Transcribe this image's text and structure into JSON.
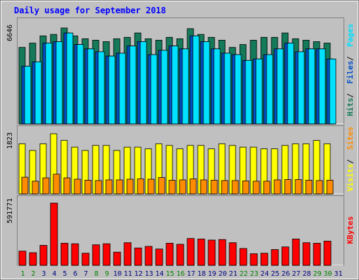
{
  "chart_data": {
    "type": "bar",
    "title": "Daily usage for September 2018",
    "categories": [
      "1",
      "2",
      "3",
      "4",
      "5",
      "6",
      "7",
      "8",
      "9",
      "10",
      "11",
      "12",
      "13",
      "14",
      "15",
      "16",
      "17",
      "18",
      "19",
      "20",
      "21",
      "22",
      "23",
      "24",
      "25",
      "26",
      "27",
      "28",
      "29",
      "30",
      "31"
    ],
    "weekend_days": [
      "1",
      "2",
      "8",
      "9",
      "15",
      "16",
      "22",
      "23",
      "29",
      "30"
    ],
    "panels": [
      {
        "key": "top",
        "ymax_label": "6646",
        "ymax": 6646,
        "series": [
          {
            "name": "Hits",
            "color": "#157a5a",
            "values": [
              5300,
              5600,
              6100,
              6200,
              6646,
              6100,
              5900,
              5800,
              5700,
              5900,
              6000,
              6300,
              5900,
              5800,
              6000,
              5900,
              6600,
              6200,
              6000,
              5800,
              5300,
              5500,
              5800,
              6000,
              6000,
              6300,
              5900,
              5800,
              5700,
              5600,
              null
            ]
          },
          {
            "name": "Files",
            "color": "#0050c8",
            "values": [
              4000,
              4300,
              5600,
              5700,
              6300,
              5500,
              5200,
              5000,
              4700,
              4900,
              5400,
              5700,
              4800,
              5100,
              5400,
              5200,
              6100,
              5700,
              5200,
              4900,
              4800,
              4400,
              4500,
              4800,
              5200,
              5600,
              5000,
              5200,
              5200,
              4500,
              null
            ]
          },
          {
            "name": "Pages",
            "color": "#00e0ff",
            "values": [
              4000,
              4300,
              5600,
              5700,
              6300,
              5500,
              5200,
              5000,
              4700,
              4900,
              5400,
              5700,
              4800,
              5100,
              5400,
              5200,
              6100,
              5700,
              5200,
              4900,
              4800,
              4400,
              4500,
              4800,
              5200,
              5600,
              5000,
              5200,
              5200,
              4500,
              null
            ]
          }
        ]
      },
      {
        "key": "middle",
        "ymax_label": "1823",
        "ymax": 1823,
        "series": [
          {
            "name": "Visits",
            "color": "#ffff00",
            "values": [
              1500,
              1300,
              1500,
              1800,
              1600,
              1400,
              1300,
              1450,
              1450,
              1300,
              1400,
              1400,
              1350,
              1500,
              1450,
              1350,
              1450,
              1450,
              1350,
              1500,
              1450,
              1400,
              1400,
              1350,
              1350,
              1450,
              1500,
              1500,
              1600,
              1500,
              null
            ]
          },
          {
            "name": "Sites",
            "color": "#ff8c00",
            "values": [
              500,
              380,
              480,
              590,
              480,
              440,
              410,
              400,
              420,
              420,
              440,
              450,
              440,
              490,
              410,
              420,
              450,
              420,
              410,
              400,
              400,
              390,
              380,
              380,
              420,
              430,
              430,
              410,
              400,
              410,
              null
            ]
          }
        ]
      },
      {
        "key": "bottom",
        "ymax_label": "591771",
        "ymax": 591771,
        "series": [
          {
            "name": "KBytes",
            "color": "#ff0000",
            "values": [
              135000,
              120000,
              190000,
              591771,
              210000,
              205000,
              115000,
              195000,
              205000,
              125000,
              215000,
              165000,
              180000,
              155000,
              210000,
              200000,
              255000,
              250000,
              240000,
              245000,
              215000,
              160000,
              110000,
              115000,
              150000,
              175000,
              250000,
              215000,
              210000,
              230000,
              null
            ]
          }
        ]
      }
    ],
    "axis_labels": {
      "top": [
        "Hits",
        "Files",
        "Pages"
      ],
      "middle": [
        "Visits",
        "Sites"
      ],
      "bottom": [
        "KBytes"
      ]
    },
    "grid": false,
    "legend": "right-vertical"
  },
  "colors": {
    "background": "#c0c0c0",
    "plot_bg": "#c0c0c0",
    "title": "#0000ff",
    "weekday_label": "#0000ff",
    "weekend_label": "#008000",
    "separator_top": "#157a5a",
    "separator_mid": "#ff8c00",
    "separator_bottom": "#ff0000"
  }
}
